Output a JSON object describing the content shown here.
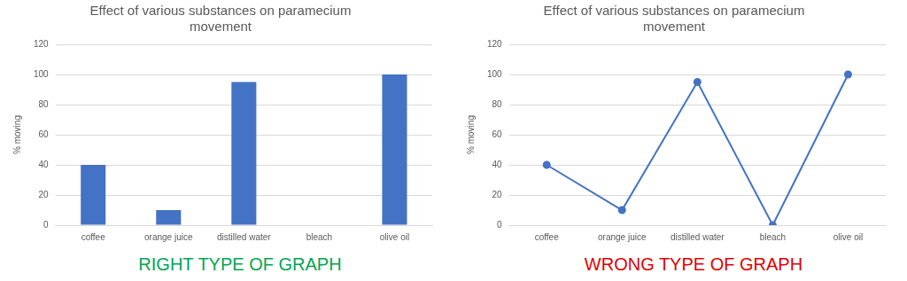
{
  "chart_data": [
    {
      "type": "bar",
      "title": "Effect of various substances on paramecium movement",
      "y_label": "% moving",
      "categories": [
        "coffee",
        "orange juice",
        "distilled water",
        "bleach",
        "olive oil"
      ],
      "values": [
        40,
        10,
        95,
        0,
        100
      ],
      "color": "#4472c4",
      "ylim": [
        0,
        120
      ],
      "yticks": [
        0,
        20,
        40,
        60,
        80,
        100,
        120
      ],
      "grid": true,
      "annotation": "RIGHT TYPE OF GRAPH"
    },
    {
      "type": "line",
      "title": "Effect of various substances on paramecium movement",
      "y_label": "% moving",
      "categories": [
        "coffee",
        "orange juice",
        "distilled water",
        "bleach",
        "olive oil"
      ],
      "values": [
        40,
        10,
        95,
        0,
        100
      ],
      "color": "#4472c4",
      "marker": "circle",
      "line_style": "solid",
      "ylim": [
        0,
        120
      ],
      "yticks": [
        0,
        20,
        40,
        60,
        80,
        100,
        120
      ],
      "grid": true,
      "annotation": "WRONG TYPE OF GRAPH"
    }
  ]
}
